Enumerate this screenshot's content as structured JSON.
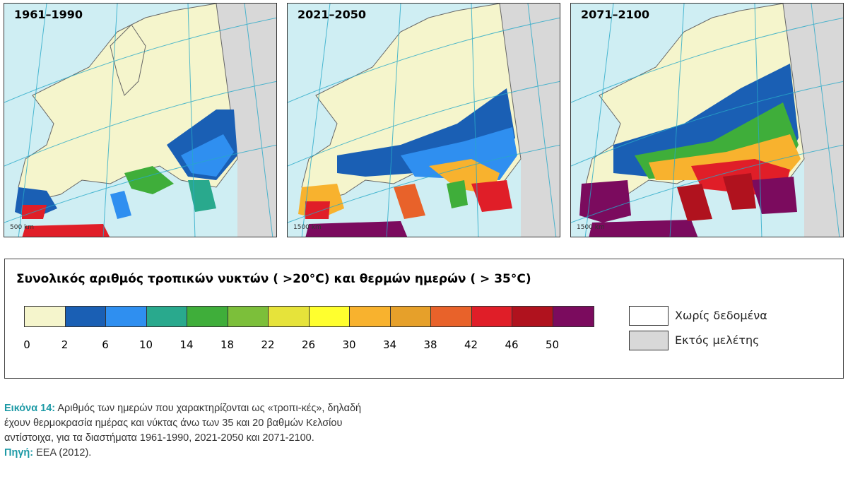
{
  "maps": [
    {
      "period": "1961–1990",
      "scale": "500 km"
    },
    {
      "period": "2021–2050",
      "scale": "1500 km"
    },
    {
      "period": "2071–2100",
      "scale": "1500 km"
    }
  ],
  "legend": {
    "title": "Συνολικός αριθμός τροπικών νυκτών ( >20°C) και θερμών ημερών ( > 35°C)",
    "colors": [
      "#f5f5cc",
      "#1a5fb4",
      "#2f8ff0",
      "#29a98d",
      "#3fae3a",
      "#7cbf3a",
      "#e6e33a",
      "#ffff2e",
      "#f8b22e",
      "#e6a02a",
      "#e8622a",
      "#e01e28",
      "#b0121e",
      "#7b0b5e"
    ],
    "ticks": [
      "0",
      "2",
      "6",
      "10",
      "14",
      "18",
      "22",
      "26",
      "30",
      "34",
      "38",
      "42",
      "46",
      "50"
    ],
    "no_data": {
      "label": "Χωρίς δεδομένα",
      "color": "#ffffff"
    },
    "out_of_study": {
      "label": "Εκτός μελέτης",
      "color": "#d8d8d8"
    }
  },
  "caption": {
    "figure_label": "Εικόνα 14:",
    "text": " Αριθμός των ημερών που χαρακτηρίζονται ως «τροπι-κές», δηλαδή έχουν θερμοκρασία ημέρας και νύκτας άνω των 35 και 20 βαθμών Κελσίου αντίστοιχα, για τα διαστήματα 1961-1990, 2021-2050 και 2071-2100.",
    "source_label": "Πηγή:",
    "source_text": " EEA (2012)."
  }
}
